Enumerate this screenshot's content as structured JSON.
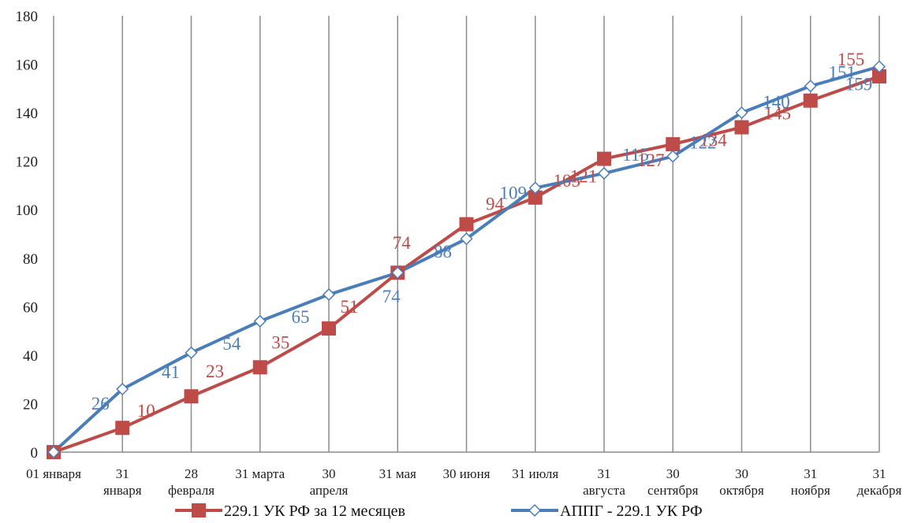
{
  "chart_data": {
    "type": "line",
    "categories": [
      [
        "01 января"
      ],
      [
        "31",
        "января"
      ],
      [
        "28",
        "февраля"
      ],
      [
        "31 марта"
      ],
      [
        "30",
        "апреля"
      ],
      [
        "31 мая"
      ],
      [
        "30 июня"
      ],
      [
        "31 июля"
      ],
      [
        "31",
        "августа"
      ],
      [
        "30",
        "сентября"
      ],
      [
        "30",
        "октября"
      ],
      [
        "31",
        "ноября"
      ],
      [
        "31",
        "декабря"
      ]
    ],
    "ylim": [
      0,
      180
    ],
    "yticks": [
      0,
      20,
      40,
      60,
      80,
      100,
      120,
      140,
      160,
      180
    ],
    "grid": {
      "vertical": true,
      "horizontal": false
    },
    "legend": "bottom",
    "series": [
      {
        "name": "229.1 УК РФ за 12 месяцев",
        "color": "#be4b48",
        "marker": "square",
        "values": [
          0,
          10,
          23,
          35,
          51,
          74,
          94,
          105,
          121,
          127,
          134,
          145,
          155
        ],
        "labels": [
          "",
          "10",
          "23",
          "35",
          "51",
          "74",
          "94",
          "105",
          "121",
          "127",
          "134",
          "145",
          "155"
        ]
      },
      {
        "name": "АППГ - 229.1  УК РФ",
        "color": "#4a7ebb",
        "marker": "diamond",
        "values": [
          0,
          26,
          41,
          54,
          65,
          74,
          88,
          109,
          115,
          122,
          140,
          151,
          159
        ],
        "labels": [
          "",
          "26",
          "41",
          "54",
          "65",
          "74",
          "88",
          "109",
          "115",
          "122",
          "140",
          "151",
          "159"
        ]
      }
    ]
  }
}
